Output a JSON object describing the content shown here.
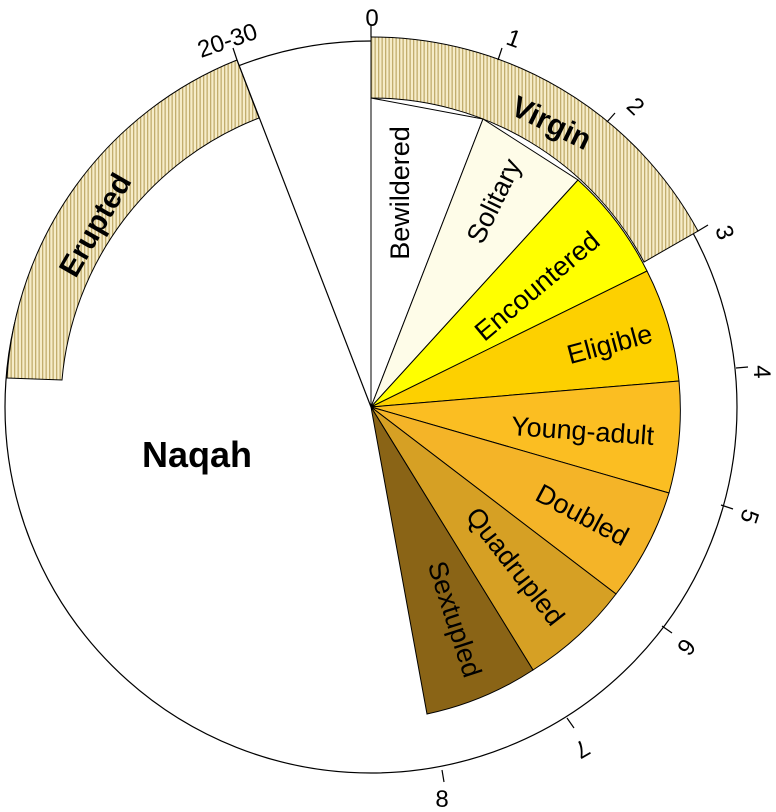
{
  "segments": [
    {
      "label": "Bewildered",
      "color": "#ffffff"
    },
    {
      "label": "Solitary",
      "color": "#fefce8"
    },
    {
      "label": "Encountered",
      "color": "#ffff00"
    },
    {
      "label": "Eligible",
      "color": "#fdd000"
    },
    {
      "label": "Young-adult",
      "color": "#fbbe22"
    },
    {
      "label": "Doubled",
      "color": "#f4b428"
    },
    {
      "label": "Quadrupled",
      "color": "#d6a024"
    },
    {
      "label": "Sextupled",
      "color": "#8a6416"
    }
  ],
  "naqah": {
    "label": "Naqah"
  },
  "ticks": [
    "0",
    "1",
    "2",
    "3",
    "4",
    "5",
    "6",
    "7",
    "8",
    "20-30"
  ],
  "bands": [
    {
      "label": "Virgin",
      "color": "#f6ecc8",
      "stripe_color": "#c2ad6e"
    },
    {
      "label": "Erupted",
      "color": "#f6ecc8",
      "stripe_color": "#c2ad6e"
    }
  ]
}
